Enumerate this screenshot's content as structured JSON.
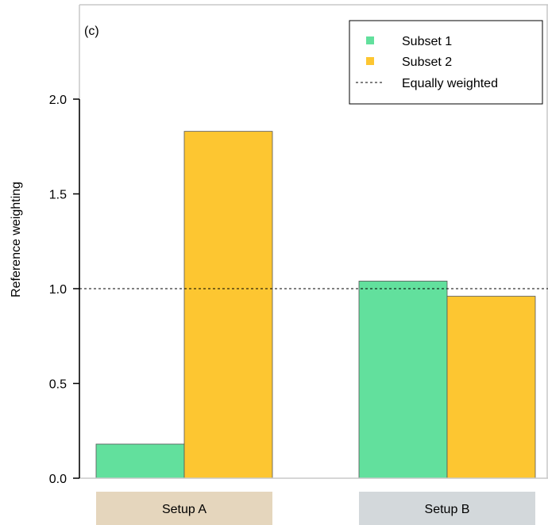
{
  "chart_data": {
    "type": "bar",
    "panel_label": "(c)",
    "ylabel": "Reference weighting",
    "ylim": [
      0,
      2.5
    ],
    "yticks": [
      "0.0",
      "0.5",
      "1.0",
      "1.5",
      "2.0"
    ],
    "categories": [
      "Setup A",
      "Setup B"
    ],
    "series": [
      {
        "name": "Subset 1",
        "color": "#62e09d",
        "values": [
          0.18,
          1.04
        ]
      },
      {
        "name": "Subset 2",
        "color": "#fdc631",
        "values": [
          1.83,
          0.96
        ]
      }
    ],
    "reference_line": {
      "label": "Equally weighted",
      "value": 1.0,
      "style": "dashed"
    },
    "category_box_colors": [
      "#e5d6bd",
      "#d3d8db"
    ],
    "legend_position": "top-right",
    "grid": false
  }
}
